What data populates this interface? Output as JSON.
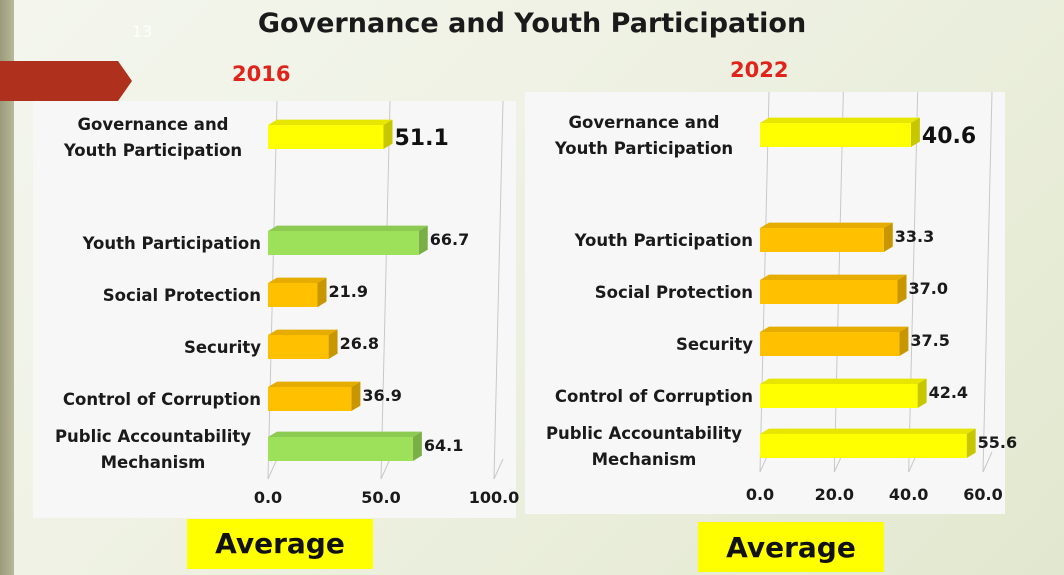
{
  "title": "Governance and Youth Participation",
  "slide_number": "13",
  "colors": {
    "green": "#9de05a",
    "gold": "#ffc000",
    "yellow": "#ffff00",
    "year_red": "#e0241b",
    "average_bg": "#ffff00"
  },
  "chart_data": [
    {
      "type": "bar",
      "orientation": "horizontal",
      "title": "2016",
      "categories": [
        "Governance and Youth Participation",
        "Youth Participation",
        "Social Protection",
        "Security",
        "Control of Corruption",
        "Public Accountability Mechanism"
      ],
      "values": [
        51.1,
        66.7,
        21.9,
        26.8,
        36.9,
        64.1
      ],
      "value_labels": [
        "51.1",
        "66.7",
        "21.9",
        "26.8",
        "36.9",
        "64.1"
      ],
      "bar_colors": [
        "yellow",
        "green",
        "gold",
        "gold",
        "gold",
        "green"
      ],
      "xlim": [
        0,
        100
      ],
      "xticks": [
        "0.0",
        "50.0",
        "100.0"
      ],
      "grid": true,
      "caption": "Average"
    },
    {
      "type": "bar",
      "orientation": "horizontal",
      "title": "2022",
      "categories": [
        "Governance and Youth Participation",
        "Youth Participation",
        "Social Protection",
        "Security",
        "Control of Corruption",
        "Public Accountability Mechanism"
      ],
      "values": [
        40.6,
        33.3,
        37.0,
        37.5,
        42.4,
        55.6
      ],
      "value_labels": [
        "40.6",
        "33.3",
        "37.0",
        "37.5",
        "42.4",
        "55.6"
      ],
      "bar_colors": [
        "yellow",
        "gold",
        "gold",
        "gold",
        "yellow",
        "yellow"
      ],
      "xlim": [
        0,
        60
      ],
      "xticks": [
        "0.0",
        "20.0",
        "40.0",
        "60.0"
      ],
      "grid": true,
      "caption": "Average"
    }
  ]
}
